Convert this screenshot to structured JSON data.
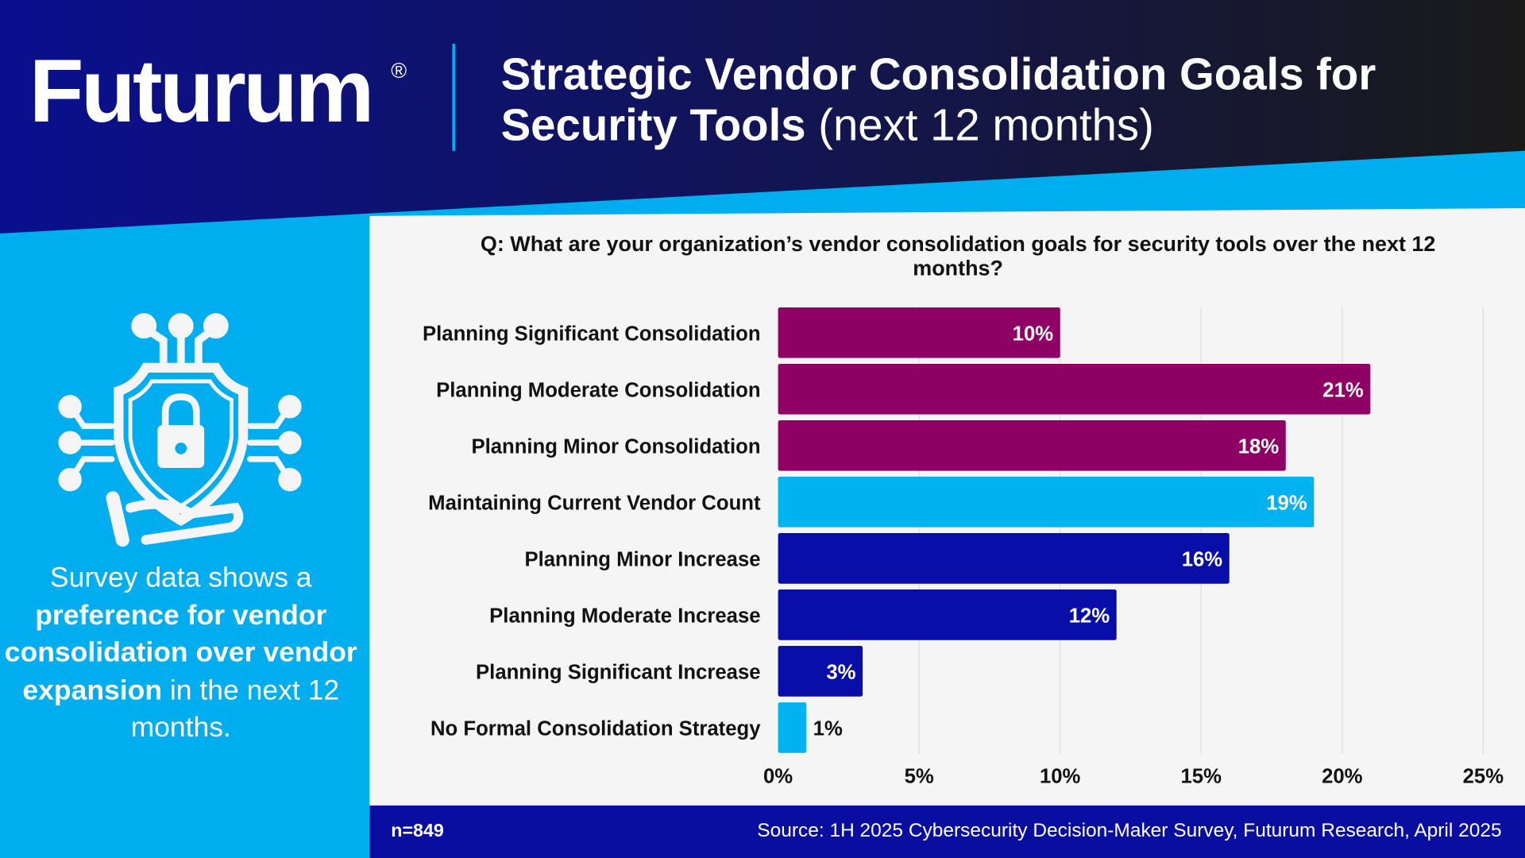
{
  "header": {
    "logo": "Futurum",
    "registered": "®",
    "title_bold": "Strategic Vendor Consolidation Goals for Security Tools",
    "title_light": " (next 12 months)"
  },
  "sidebar": {
    "icon": "shield-lock-circuit-hand-icon",
    "text_1": "Survey data shows a ",
    "text_bold": "preference for vendor consolidation over vendor expansion",
    "text_2": " in the next 12 months."
  },
  "question": "Q: What are your organization’s vendor consolidation goals for security tools over the next 12 months?",
  "footer": {
    "n": "n=849",
    "source": "Source: 1H 2025 Cybersecurity Decision-Maker Survey, Futurum Research, April 2025"
  },
  "colors": {
    "consolidation": "#8e0064",
    "maintain": "#00b2f0",
    "increase": "#0a0ea8",
    "header_dark": "#0a0f8f",
    "accent": "#00aeef"
  },
  "chart_data": {
    "type": "bar",
    "orientation": "horizontal",
    "categories": [
      "Planning Significant Consolidation",
      "Planning Moderate Consolidation",
      "Planning Minor Consolidation",
      "Maintaining Current Vendor Count",
      "Planning Minor Increase",
      "Planning Moderate Increase",
      "Planning Significant Increase",
      "No Formal Consolidation Strategy"
    ],
    "values": [
      10,
      21,
      18,
      19,
      16,
      12,
      3,
      1
    ],
    "labels": [
      "10%",
      "21%",
      "18%",
      "19%",
      "16%",
      "12%",
      "3%",
      "1%"
    ],
    "bar_colors": [
      "#8e0064",
      "#8e0064",
      "#8e0064",
      "#00b2f0",
      "#0a0ea8",
      "#0a0ea8",
      "#0a0ea8",
      "#00b2f0"
    ],
    "xlim": [
      0,
      25
    ],
    "xticks": [
      "0%",
      "5%",
      "10%",
      "15%",
      "20%",
      "25%"
    ],
    "grid": true
  }
}
